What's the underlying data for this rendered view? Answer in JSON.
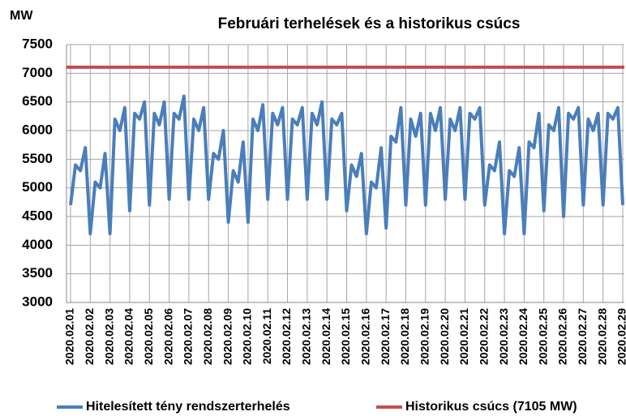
{
  "chart_data": {
    "type": "line",
    "title": "Februári terhelések és a historikus csúcs",
    "y_label": "MW",
    "categories": [
      "2020.02.01",
      null,
      null,
      null,
      "2020.02.02",
      null,
      null,
      null,
      "2020.02.03",
      null,
      null,
      null,
      "2020.02.04",
      null,
      null,
      null,
      "2020.02.05",
      null,
      null,
      null,
      "2020.02.06",
      null,
      null,
      null,
      "2020.02.07",
      null,
      null,
      null,
      "2020.02.08",
      null,
      null,
      null,
      "2020.02.09",
      null,
      null,
      null,
      "2020.02.10",
      null,
      null,
      null,
      "2020.02.11",
      null,
      null,
      null,
      "2020.02.12",
      null,
      null,
      null,
      "2020.02.13",
      null,
      null,
      null,
      "2020.02.14",
      null,
      null,
      null,
      "2020.02.15",
      null,
      null,
      null,
      "2020.02.16",
      null,
      null,
      null,
      "2020.02.17",
      null,
      null,
      null,
      "2020.02.18",
      null,
      null,
      null,
      "2020.02.19",
      null,
      null,
      null,
      "2020.02.20",
      null,
      null,
      null,
      "2020.02.21",
      null,
      null,
      null,
      "2020.02.22",
      null,
      null,
      null,
      "2020.02.23",
      null,
      null,
      null,
      "2020.02.24",
      null,
      null,
      null,
      "2020.02.25",
      null,
      null,
      null,
      "2020.02.26",
      null,
      null,
      null,
      "2020.02.27",
      null,
      null,
      null,
      "2020.02.28",
      null,
      null,
      null,
      "2020.02.29"
    ],
    "series": [
      {
        "name": "Hitelesített tény rendszerterhelés",
        "color": "#4a7ebb",
        "values": [
          4700,
          5400,
          5300,
          5700,
          4200,
          5100,
          5000,
          5600,
          4200,
          6200,
          6000,
          6400,
          4600,
          6300,
          6200,
          6500,
          4700,
          6300,
          6100,
          6500,
          4800,
          6300,
          6200,
          6600,
          4800,
          6200,
          6000,
          6400,
          4800,
          5600,
          5500,
          6000,
          4400,
          5300,
          5100,
          5800,
          4400,
          6200,
          6000,
          6450,
          4800,
          6300,
          6100,
          6400,
          4800,
          6200,
          6100,
          6400,
          4800,
          6300,
          6100,
          6500,
          4800,
          6200,
          6100,
          6300,
          4600,
          5400,
          5200,
          5600,
          4200,
          5100,
          5000,
          5700,
          4300,
          5900,
          5800,
          6400,
          4700,
          6200,
          5900,
          6300,
          4700,
          6300,
          6000,
          6400,
          4800,
          6200,
          6000,
          6400,
          4800,
          6300,
          6200,
          6400,
          4700,
          5400,
          5300,
          5800,
          4200,
          5300,
          5200,
          5700,
          4200,
          5800,
          5700,
          6300,
          4600,
          6100,
          6000,
          6400,
          4500,
          6300,
          6200,
          6400,
          4700,
          6200,
          6000,
          6300,
          4700,
          6300,
          6200,
          6400,
          4700
        ]
      }
    ],
    "reference_line": {
      "name": "Historikus csúcs (7105 MW)",
      "value": 7105,
      "color": "#c0504d"
    },
    "ylim": [
      3000,
      7500
    ],
    "yticks": [
      3000,
      3500,
      4000,
      4500,
      5000,
      5500,
      6000,
      6500,
      7000,
      7500
    ],
    "grid": true,
    "legend": "bottom"
  }
}
